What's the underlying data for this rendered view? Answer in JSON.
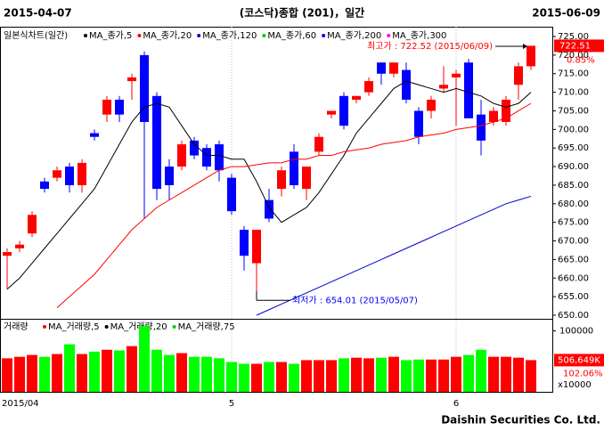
{
  "chart_data": {
    "type": "candlestick",
    "title": "(코스닥)종합 (201)，일간",
    "start_date": "2015-04-07",
    "end_date": "2015-06-09",
    "chart_label": "일본식차트(일간)",
    "categories": [
      "2015/04",
      null,
      null,
      null,
      null,
      null,
      null,
      null,
      null,
      null,
      null,
      null,
      null,
      null,
      null,
      null,
      null,
      null,
      "5",
      null,
      null,
      null,
      null,
      null,
      null,
      null,
      null,
      null,
      null,
      null,
      null,
      null,
      null,
      null,
      null,
      null,
      "6",
      null,
      null,
      null,
      null,
      null,
      null
    ],
    "open": [
      666,
      668,
      672,
      686,
      687,
      690,
      685,
      699,
      704,
      708,
      713,
      720,
      709,
      690,
      690,
      697,
      695,
      696,
      687,
      673,
      664,
      681,
      684,
      694,
      684,
      694,
      704,
      709,
      708,
      710,
      718,
      715,
      716,
      705,
      705,
      711,
      714,
      718,
      704,
      702,
      702,
      712,
      717
    ],
    "high": [
      668,
      670,
      678,
      687,
      690,
      691,
      692,
      700,
      709,
      709,
      715,
      721,
      710,
      692,
      697,
      698,
      696,
      697,
      688,
      674,
      673,
      684,
      690,
      696,
      690,
      699,
      705,
      710,
      709,
      714,
      718,
      718,
      718,
      706,
      709,
      717,
      716,
      719,
      708,
      706,
      709,
      718,
      722.52
    ],
    "low": [
      657,
      667,
      671,
      683,
      686,
      683,
      683,
      697,
      702,
      702,
      708,
      676,
      681,
      681,
      689,
      692,
      689,
      686,
      677,
      662,
      654.01,
      675,
      682,
      684,
      681,
      693,
      703,
      700,
      707,
      709,
      712,
      714,
      707,
      696,
      703,
      710,
      701,
      703,
      693,
      701,
      701,
      708,
      716
    ],
    "close": [
      667,
      669,
      677,
      684,
      689,
      685,
      691,
      698,
      708,
      704,
      714,
      702,
      684,
      685,
      696,
      693,
      690,
      689,
      678,
      666,
      673,
      676,
      689,
      685,
      690,
      698,
      705,
      701,
      709,
      713,
      715,
      718,
      708,
      698,
      708,
      712,
      715,
      703,
      697,
      705,
      708,
      717,
      722.51
    ],
    "up_color": "#ff0000",
    "down_color": "#0000ff",
    "ylim": [
      649.04,
      727.64
    ],
    "yticks": [
      {
        "value": 650,
        "label": "650.00"
      },
      {
        "value": 655,
        "label": "655.00"
      },
      {
        "value": 660,
        "label": "660.00"
      },
      {
        "value": 665,
        "label": "665.00"
      },
      {
        "value": 670,
        "label": "670.00"
      },
      {
        "value": 675,
        "label": "675.00"
      },
      {
        "value": 680,
        "label": "680.00"
      },
      {
        "value": 685,
        "label": "685.00"
      },
      {
        "value": 690,
        "label": "690.00"
      },
      {
        "value": 695,
        "label": "695.00"
      },
      {
        "value": 700,
        "label": "700.00"
      },
      {
        "value": 705,
        "label": "705.00"
      },
      {
        "value": 710,
        "label": "710.00"
      },
      {
        "value": 715,
        "label": "715.00"
      },
      {
        "value": 720,
        "label": "720.00"
      },
      {
        "value": 725,
        "label": "725.00"
      }
    ],
    "series": [
      {
        "name": "MA_종가,5",
        "color": "#000000",
        "values": [
          657,
          660,
          664,
          668,
          672,
          676,
          680,
          684,
          690,
          696,
          702,
          706,
          707,
          706,
          701,
          696,
          693,
          693,
          692,
          692,
          686,
          679,
          675,
          677,
          679,
          683,
          688,
          693,
          699,
          703,
          707,
          711,
          713,
          712,
          711,
          710,
          711,
          710,
          709,
          707,
          706,
          707,
          710
        ]
      },
      {
        "name": "MA_종가,20",
        "color": "#ff0000",
        "values": [
          null,
          null,
          null,
          null,
          652,
          655,
          658,
          661,
          665,
          669,
          673,
          676,
          679,
          681,
          683,
          685,
          687,
          689,
          690,
          690,
          690.5,
          691,
          691,
          692,
          692,
          693,
          693,
          694,
          694.5,
          695,
          696,
          696.5,
          697,
          698,
          698.5,
          699,
          700,
          700.5,
          701,
          702,
          703,
          705,
          707
        ]
      },
      {
        "name": "MA_종가,120",
        "color": "#0000cc",
        "values": [
          null,
          null,
          null,
          null,
          null,
          null,
          null,
          null,
          null,
          null,
          null,
          null,
          null,
          null,
          null,
          null,
          null,
          null,
          null,
          null,
          650,
          651.5,
          653,
          654.5,
          656,
          657.5,
          659,
          660.5,
          662,
          663.5,
          665,
          666.5,
          668,
          669.5,
          671,
          672.5,
          674,
          675.5,
          677,
          678.5,
          680,
          681,
          682
        ]
      },
      {
        "name": "MA_종가,60",
        "color": "#00cc00"
      },
      {
        "name": "MA_종가,200",
        "color": "#0000ff"
      },
      {
        "name": "MA_종가,300",
        "color": "#ff00ff"
      }
    ],
    "high_annotation": "최고가 : 722.52 (2015/06/09)",
    "low_annotation": "최저가 : 654.01 (2015/05/07)",
    "last_price": "722.51",
    "last_change": "0.85%",
    "volume_label": "거래량",
    "volume": [
      55000,
      57500,
      60500,
      57500,
      62000,
      78000,
      62000,
      66000,
      69000,
      68000,
      75000,
      108000,
      69000,
      60500,
      63500,
      57500,
      57500,
      55000,
      49000,
      46000,
      46000,
      49000,
      49000,
      46000,
      52000,
      52000,
      52000,
      55000,
      56000,
      55000,
      56000,
      57500,
      52000,
      53000,
      53000,
      53000,
      57500,
      60500,
      69000,
      57500,
      57500,
      56000,
      52000
    ],
    "volume_up_color": "#ff0000",
    "volume_down_color": "#00ff00",
    "vlim": [
      0,
      114000
    ],
    "vticks": [
      100000
    ],
    "volume_unit": "x10000",
    "volume_series": [
      {
        "name": "MA_거래량,5",
        "color": "#ff0000"
      },
      {
        "name": "MA_거래량,20",
        "color": "#000000"
      },
      {
        "name": "MA_거래량,75",
        "color": "#00cc00"
      }
    ],
    "last_volume": "506,649K",
    "last_volume_change": "102.06%",
    "footer": "Daishin Securities Co. Ltd."
  }
}
